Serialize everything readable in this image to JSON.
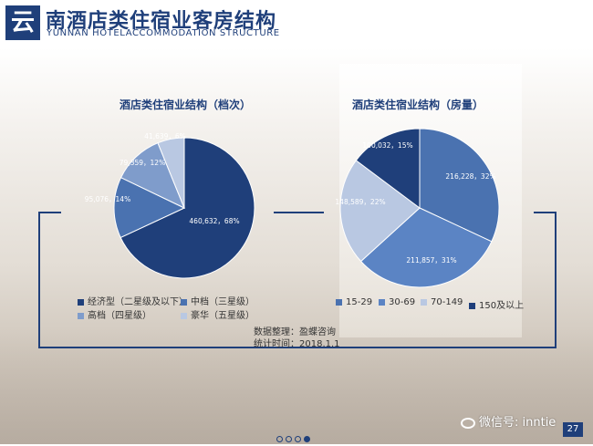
{
  "header": {
    "logo_char": "云",
    "title": "南酒店类住宿业客房结构",
    "subtitle": "YUNNAN HOTELACCOMMODATION STRUCTURE"
  },
  "colors": {
    "brand": "#1f3f7a",
    "pie_grade": [
      "#1f3f7a",
      "#4a72b0",
      "#7f9ccb",
      "#b9c8e2"
    ],
    "pie_rooms": [
      "#4a72b0",
      "#5b84c4",
      "#b9c8e2",
      "#1f3f7a"
    ]
  },
  "chart_data": [
    {
      "type": "pie",
      "title": "酒店类住宿业结构（档次）",
      "slices": [
        {
          "name": "经济型（二星级及以下）",
          "value": 460632,
          "percent": 68,
          "label": "460,632，68%"
        },
        {
          "name": "中档（三星级）",
          "value": 95076,
          "percent": 14,
          "label": "95,076，14%"
        },
        {
          "name": "高档（四星级）",
          "value": 79359,
          "percent": 12,
          "label": "79,359，12%"
        },
        {
          "name": "豪华（五星级）",
          "value": 41639,
          "percent": 6,
          "label": "41,639，6%"
        }
      ],
      "legend": "bottom"
    },
    {
      "type": "pie",
      "title": "酒店类住宿业结构（房量）",
      "slices": [
        {
          "name": "15-29",
          "value": 216228,
          "percent": 32,
          "label": "216,228，32%"
        },
        {
          "name": "30-69",
          "value": 211857,
          "percent": 31,
          "label": "211,857，31%"
        },
        {
          "name": "70-149",
          "value": 148589,
          "percent": 22,
          "label": "148,589，22%"
        },
        {
          "name": "150及以上",
          "value": 100032,
          "percent": 15,
          "label": "100,032，15%"
        }
      ],
      "legend": "bottom"
    }
  ],
  "notes": {
    "source": "数据整理：盈蝶咨询",
    "date": "统计时间：2018.1.1"
  },
  "footer": {
    "wechat": "微信号: inntie",
    "page": "27"
  }
}
